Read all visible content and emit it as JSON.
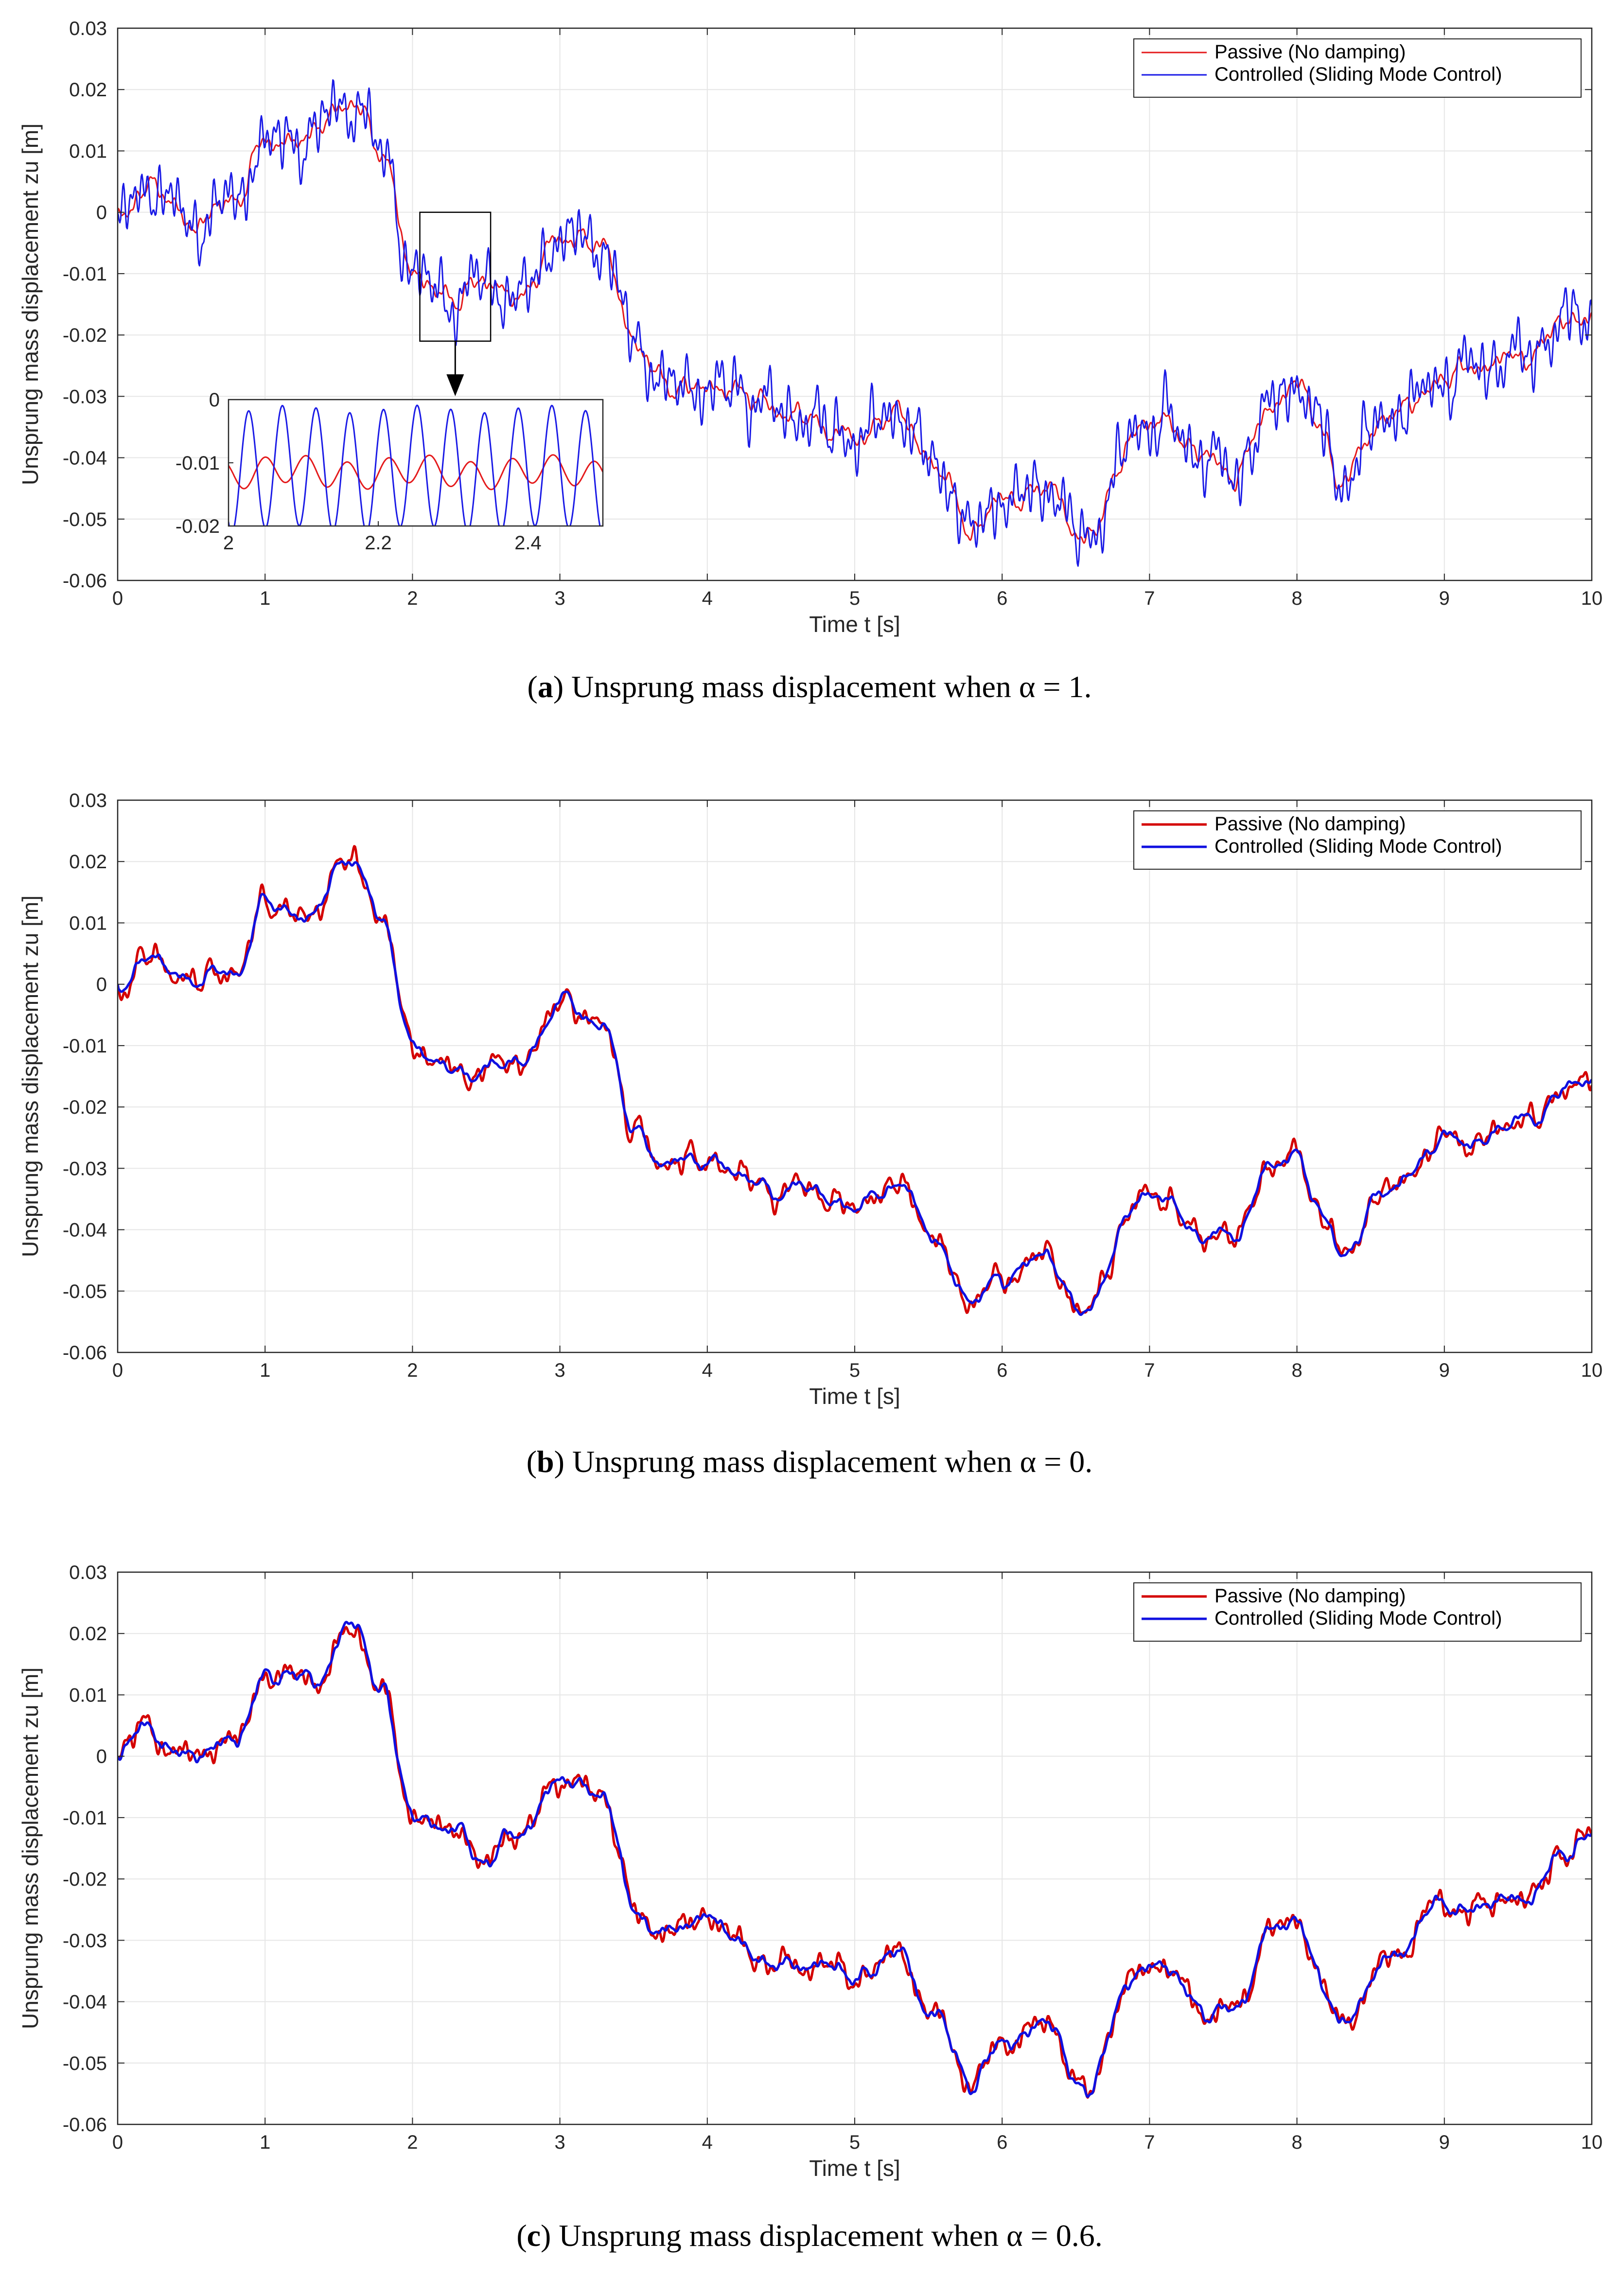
{
  "chart_data": [
    {
      "type": "line",
      "panel": "a",
      "caption_label": "a",
      "caption_text": "Unsprung mass displacement when α = 1.",
      "xlabel": "Time t [s]",
      "ylabel": "Unsprung mass displacement zu [m]",
      "xlim": [
        0,
        10
      ],
      "ylim": [
        -0.06,
        0.03
      ],
      "xticks": [
        "0",
        "1",
        "2",
        "3",
        "4",
        "5",
        "6",
        "7",
        "8",
        "9",
        "10"
      ],
      "yticks": [
        "0.03",
        "0.02",
        "0.01",
        "0",
        "-0.01",
        "-0.02",
        "-0.03",
        "-0.04",
        "-0.05",
        "-0.06"
      ],
      "grid": true,
      "legend_position": "top-right",
      "x_anchors": [
        0,
        0.2,
        0.5,
        0.8,
        1.0,
        1.3,
        1.6,
        1.8,
        2.0,
        2.3,
        2.5,
        2.7,
        3.0,
        3.3,
        3.5,
        3.7,
        4.0,
        4.3,
        4.6,
        5.0,
        5.3,
        5.5,
        5.8,
        6.0,
        6.3,
        6.5,
        6.6,
        6.9,
        7.1,
        7.4,
        7.6,
        7.8,
        8.0,
        8.2,
        8.3,
        8.6,
        9.0,
        9.3,
        9.6,
        9.8,
        10.0
      ],
      "series": [
        {
          "name": "Passive (No damping)",
          "color": "#e41a1c",
          "ripple": 0.002,
          "x": [
            0,
            0.2,
            0.5,
            0.8,
            1.0,
            1.3,
            1.6,
            1.8,
            2.0,
            2.3,
            2.5,
            2.7,
            3.0,
            3.3,
            3.5,
            3.7,
            4.0,
            4.3,
            4.6,
            5.0,
            5.3,
            5.5,
            5.8,
            6.0,
            6.3,
            6.5,
            6.6,
            6.9,
            7.1,
            7.4,
            7.6,
            7.8,
            8.0,
            8.2,
            8.3,
            8.6,
            9.0,
            9.3,
            9.6,
            9.8,
            10.0
          ],
          "values": [
            0,
            0.004,
            -0.002,
            0.002,
            0.012,
            0.012,
            0.018,
            0.01,
            -0.01,
            -0.014,
            -0.012,
            -0.014,
            -0.004,
            -0.005,
            -0.022,
            -0.028,
            -0.028,
            -0.03,
            -0.034,
            -0.036,
            -0.033,
            -0.04,
            -0.052,
            -0.046,
            -0.045,
            -0.052,
            -0.053,
            -0.036,
            -0.033,
            -0.041,
            -0.043,
            -0.032,
            -0.028,
            -0.036,
            -0.044,
            -0.034,
            -0.027,
            -0.024,
            -0.024,
            -0.018,
            -0.016
          ]
        },
        {
          "name": "Controlled (Sliding Mode Control)",
          "color": "#1a1ae6",
          "ripple": 0.009,
          "x": [
            0,
            0.2,
            0.5,
            0.8,
            1.0,
            1.3,
            1.6,
            1.8,
            2.0,
            2.3,
            2.5,
            2.7,
            3.0,
            3.3,
            3.5,
            3.7,
            4.0,
            4.3,
            4.6,
            5.0,
            5.3,
            5.5,
            5.8,
            6.0,
            6.3,
            6.5,
            6.6,
            6.9,
            7.1,
            7.4,
            7.6,
            7.8,
            8.0,
            8.2,
            8.3,
            8.6,
            9.0,
            9.3,
            9.6,
            9.8,
            10.0
          ],
          "values": [
            0,
            0.004,
            -0.002,
            0.002,
            0.012,
            0.012,
            0.018,
            0.01,
            -0.01,
            -0.014,
            -0.012,
            -0.014,
            -0.004,
            -0.005,
            -0.022,
            -0.028,
            -0.028,
            -0.03,
            -0.034,
            -0.036,
            -0.033,
            -0.04,
            -0.052,
            -0.046,
            -0.045,
            -0.052,
            -0.053,
            -0.036,
            -0.033,
            -0.041,
            -0.043,
            -0.032,
            -0.028,
            -0.036,
            -0.044,
            -0.034,
            -0.027,
            -0.024,
            -0.024,
            -0.018,
            -0.016
          ]
        }
      ],
      "inset": {
        "xlim": [
          2.0,
          2.5
        ],
        "ylim": [
          -0.02,
          0.0
        ],
        "xticks": [
          "2",
          "2.2",
          "2.4"
        ],
        "yticks": [
          "0",
          "-0.01",
          "-0.02"
        ],
        "series": [
          {
            "name": "Passive (No damping)",
            "color": "#e41a1c",
            "mean": -0.0115,
            "amplitude": 0.0022,
            "period": 0.055
          },
          {
            "name": "Controlled (Sliding Mode Control)",
            "color": "#1a1ae6",
            "mean": -0.011,
            "amplitude": 0.0095,
            "period": 0.045
          }
        ]
      }
    },
    {
      "type": "line",
      "panel": "b",
      "caption_label": "b",
      "caption_text": "Unsprung mass displacement when α = 0.",
      "xlabel": "Time t [s]",
      "ylabel": "Unsprung mass displacement zu [m]",
      "xlim": [
        0,
        10
      ],
      "ylim": [
        -0.06,
        0.03
      ],
      "xticks": [
        "0",
        "1",
        "2",
        "3",
        "4",
        "5",
        "6",
        "7",
        "8",
        "9",
        "10"
      ],
      "yticks": [
        "0.03",
        "0.02",
        "0.01",
        "0",
        "-0.01",
        "-0.02",
        "-0.03",
        "-0.04",
        "-0.05",
        "-0.06"
      ],
      "grid": true,
      "legend_position": "top-right",
      "series": [
        {
          "name": "Passive (No damping)",
          "color": "#d40000",
          "ripple": 0.003,
          "x": [
            0,
            0.2,
            0.5,
            0.8,
            1.0,
            1.3,
            1.6,
            1.8,
            2.0,
            2.3,
            2.5,
            2.7,
            3.0,
            3.3,
            3.5,
            3.7,
            4.0,
            4.3,
            4.6,
            5.0,
            5.3,
            5.5,
            5.8,
            6.0,
            6.3,
            6.5,
            6.6,
            6.9,
            7.1,
            7.4,
            7.6,
            7.8,
            8.0,
            8.2,
            8.3,
            8.6,
            9.0,
            9.3,
            9.6,
            9.8,
            10.0
          ],
          "values": [
            0,
            0.005,
            0.0,
            0.002,
            0.013,
            0.012,
            0.02,
            0.01,
            -0.01,
            -0.014,
            -0.014,
            -0.014,
            -0.003,
            -0.006,
            -0.024,
            -0.03,
            -0.028,
            -0.032,
            -0.034,
            -0.036,
            -0.032,
            -0.04,
            -0.053,
            -0.047,
            -0.044,
            -0.052,
            -0.053,
            -0.036,
            -0.034,
            -0.042,
            -0.04,
            -0.031,
            -0.028,
            -0.038,
            -0.044,
            -0.034,
            -0.026,
            -0.024,
            -0.022,
            -0.018,
            -0.015
          ]
        },
        {
          "name": "Controlled (Sliding Mode Control)",
          "color": "#1010e0",
          "ripple": 0.0008,
          "x": [
            0,
            0.2,
            0.5,
            0.8,
            1.0,
            1.3,
            1.6,
            1.8,
            2.0,
            2.3,
            2.5,
            2.7,
            3.0,
            3.3,
            3.5,
            3.7,
            4.0,
            4.3,
            4.6,
            5.0,
            5.3,
            5.5,
            5.8,
            6.0,
            6.3,
            6.5,
            6.6,
            6.9,
            7.1,
            7.4,
            7.6,
            7.8,
            8.0,
            8.2,
            8.3,
            8.6,
            9.0,
            9.3,
            9.6,
            9.8,
            10.0
          ],
          "values": [
            0,
            0.005,
            0.0,
            0.002,
            0.013,
            0.012,
            0.02,
            0.01,
            -0.01,
            -0.014,
            -0.014,
            -0.014,
            -0.003,
            -0.006,
            -0.024,
            -0.03,
            -0.028,
            -0.032,
            -0.034,
            -0.036,
            -0.032,
            -0.04,
            -0.053,
            -0.047,
            -0.044,
            -0.052,
            -0.053,
            -0.036,
            -0.034,
            -0.042,
            -0.04,
            -0.031,
            -0.028,
            -0.038,
            -0.044,
            -0.034,
            -0.026,
            -0.024,
            -0.022,
            -0.018,
            -0.015
          ]
        }
      ]
    },
    {
      "type": "line",
      "panel": "c",
      "caption_label": "c",
      "caption_text": "Unsprung mass displacement when α = 0.6.",
      "xlabel": "Time t [s]",
      "ylabel": "Unsprung mass displacement zu [m]",
      "xlim": [
        0,
        10
      ],
      "ylim": [
        -0.06,
        0.03
      ],
      "xticks": [
        "0",
        "1",
        "2",
        "3",
        "4",
        "5",
        "6",
        "7",
        "8",
        "9",
        "10"
      ],
      "yticks": [
        "0.03",
        "0.02",
        "0.01",
        "0",
        "-0.01",
        "-0.02",
        "-0.03",
        "-0.04",
        "-0.05",
        "-0.06"
      ],
      "grid": true,
      "legend_position": "top-right",
      "series": [
        {
          "name": "Passive (No damping)",
          "color": "#d40000",
          "ripple": 0.003,
          "x": [
            0,
            0.2,
            0.5,
            0.8,
            1.0,
            1.3,
            1.6,
            1.8,
            2.0,
            2.3,
            2.5,
            2.7,
            3.0,
            3.3,
            3.5,
            3.7,
            4.0,
            4.3,
            4.6,
            5.0,
            5.3,
            5.5,
            5.8,
            6.0,
            6.3,
            6.5,
            6.6,
            6.9,
            7.1,
            7.4,
            7.6,
            7.8,
            8.0,
            8.2,
            8.3,
            8.6,
            9.0,
            9.3,
            9.6,
            9.8,
            10.0
          ],
          "values": [
            0,
            0.005,
            0.0,
            0.002,
            0.013,
            0.013,
            0.02,
            0.01,
            -0.01,
            -0.012,
            -0.016,
            -0.014,
            -0.004,
            -0.006,
            -0.024,
            -0.03,
            -0.026,
            -0.032,
            -0.034,
            -0.036,
            -0.032,
            -0.04,
            -0.054,
            -0.047,
            -0.043,
            -0.052,
            -0.053,
            -0.036,
            -0.034,
            -0.042,
            -0.04,
            -0.03,
            -0.027,
            -0.038,
            -0.044,
            -0.033,
            -0.025,
            -0.024,
            -0.022,
            -0.016,
            -0.014
          ]
        },
        {
          "name": "Controlled (Sliding Mode Control)",
          "color": "#1010e0",
          "ripple": 0.0012,
          "x": [
            0,
            0.2,
            0.5,
            0.8,
            1.0,
            1.3,
            1.6,
            1.8,
            2.0,
            2.3,
            2.5,
            2.7,
            3.0,
            3.3,
            3.5,
            3.7,
            4.0,
            4.3,
            4.6,
            5.0,
            5.3,
            5.5,
            5.8,
            6.0,
            6.3,
            6.5,
            6.6,
            6.9,
            7.1,
            7.4,
            7.6,
            7.8,
            8.0,
            8.2,
            8.3,
            8.6,
            9.0,
            9.3,
            9.6,
            9.8,
            10.0
          ],
          "values": [
            0,
            0.005,
            0.0,
            0.002,
            0.013,
            0.013,
            0.021,
            0.01,
            -0.01,
            -0.012,
            -0.016,
            -0.014,
            -0.004,
            -0.006,
            -0.024,
            -0.03,
            -0.026,
            -0.032,
            -0.034,
            -0.036,
            -0.032,
            -0.04,
            -0.054,
            -0.047,
            -0.043,
            -0.052,
            -0.053,
            -0.036,
            -0.034,
            -0.042,
            -0.04,
            -0.03,
            -0.027,
            -0.038,
            -0.044,
            -0.033,
            -0.025,
            -0.024,
            -0.022,
            -0.016,
            -0.014
          ]
        }
      ]
    }
  ]
}
